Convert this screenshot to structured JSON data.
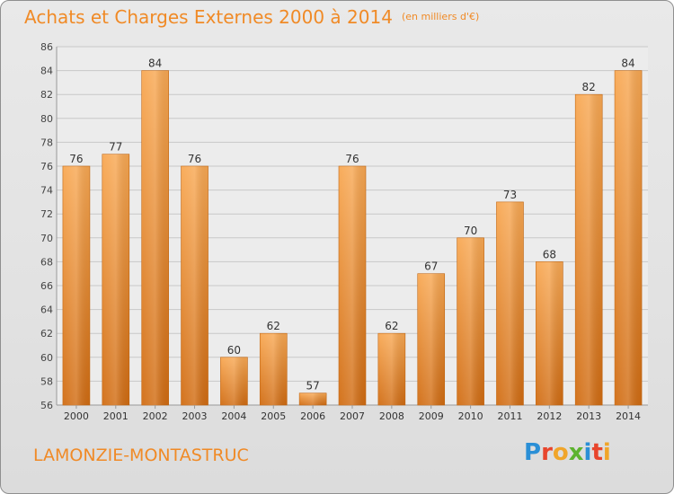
{
  "header": {
    "title": "Achats et Charges Externes 2000 à 2014",
    "unit": "(en milliers d'€)"
  },
  "footer": {
    "city": "LAMONZIE-MONTASTRUC",
    "logo": "Proxiti"
  },
  "colors": {
    "accent": "#f08a26",
    "bar_light": "#f7a650",
    "bar_dark": "#d46e14"
  },
  "chart_data": {
    "type": "bar",
    "title": "Achats et Charges Externes 2000 à 2014",
    "subtitle": "(en milliers d'€)",
    "xlabel": "",
    "ylabel": "",
    "categories": [
      "2000",
      "2001",
      "2002",
      "2003",
      "2004",
      "2005",
      "2006",
      "2007",
      "2008",
      "2009",
      "2010",
      "2011",
      "2012",
      "2013",
      "2014"
    ],
    "values": [
      76,
      77,
      84,
      76,
      60,
      62,
      57,
      76,
      62,
      67,
      70,
      73,
      68,
      82,
      84
    ],
    "ylim": [
      56,
      86
    ],
    "yticks": [
      56,
      58,
      60,
      62,
      64,
      66,
      68,
      70,
      72,
      74,
      76,
      78,
      80,
      82,
      84,
      86
    ],
    "grid": true,
    "legend": "none"
  }
}
